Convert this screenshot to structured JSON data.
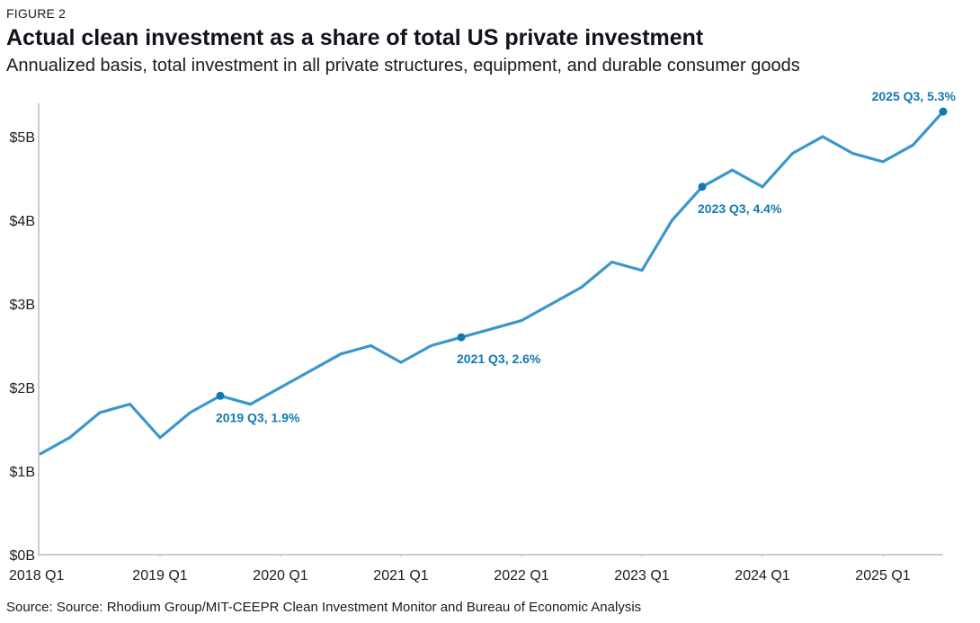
{
  "figure_label": "FIGURE 2",
  "title": "Actual clean investment as a share of total US private investment",
  "subtitle": "Annualized basis, total investment in all private structures, equipment, and durable consumer goods",
  "source": "Source: Source: Rhodium Group/MIT-CEEPR Clean Investment Monitor and Bureau of Economic Analysis",
  "colors": {
    "line": "#3b97cb",
    "marker": "#1179b0",
    "annotation": "#1179b0",
    "axis": "#cccccc"
  },
  "chart_data": {
    "type": "line",
    "title": "Actual clean investment as a share of total US private investment",
    "subtitle": "Annualized basis, total investment in all private structures, equipment, and durable consumer goods",
    "xlabel": "",
    "ylabel": "",
    "ylim": [
      0,
      5.5
    ],
    "grid": false,
    "legend": "none",
    "yticks": [
      0,
      1,
      2,
      3,
      4,
      5
    ],
    "ytick_labels": [
      "$0B",
      "$1B",
      "$2B",
      "$3B",
      "$4B",
      "$5B"
    ],
    "xtick_labels": [
      "2018 Q1",
      "2019 Q1",
      "2020 Q1",
      "2021 Q1",
      "2022 Q1",
      "2023 Q1",
      "2024 Q1",
      "2025 Q1"
    ],
    "x": [
      "2018 Q1",
      "2018 Q2",
      "2018 Q3",
      "2018 Q4",
      "2019 Q1",
      "2019 Q2",
      "2019 Q3",
      "2019 Q4",
      "2020 Q1",
      "2020 Q2",
      "2020 Q3",
      "2020 Q4",
      "2021 Q1",
      "2021 Q2",
      "2021 Q3",
      "2021 Q4",
      "2022 Q1",
      "2022 Q2",
      "2022 Q3",
      "2022 Q4",
      "2023 Q1",
      "2023 Q2",
      "2023 Q3",
      "2023 Q4",
      "2024 Q1",
      "2024 Q2",
      "2024 Q3",
      "2024 Q4",
      "2025 Q1",
      "2025 Q2",
      "2025 Q3"
    ],
    "series": [
      {
        "name": "Clean investment share",
        "values": [
          1.2,
          1.4,
          1.7,
          1.8,
          1.4,
          1.7,
          1.9,
          1.8,
          2.0,
          2.2,
          2.4,
          2.5,
          2.3,
          2.5,
          2.6,
          2.7,
          2.8,
          3.0,
          3.2,
          3.5,
          3.4,
          4.0,
          4.4,
          4.6,
          4.4,
          4.8,
          5.0,
          4.8,
          4.7,
          4.9,
          5.3
        ]
      }
    ],
    "annotations": [
      {
        "index": 6,
        "label": "2019 Q3, 1.9%",
        "position": "below-right"
      },
      {
        "index": 14,
        "label": "2021 Q3, 2.6%",
        "position": "below-right"
      },
      {
        "index": 22,
        "label": "2023 Q3, 4.4%",
        "position": "below-right"
      },
      {
        "index": 30,
        "label": "2025 Q3, 5.3%",
        "position": "above-left"
      }
    ]
  }
}
